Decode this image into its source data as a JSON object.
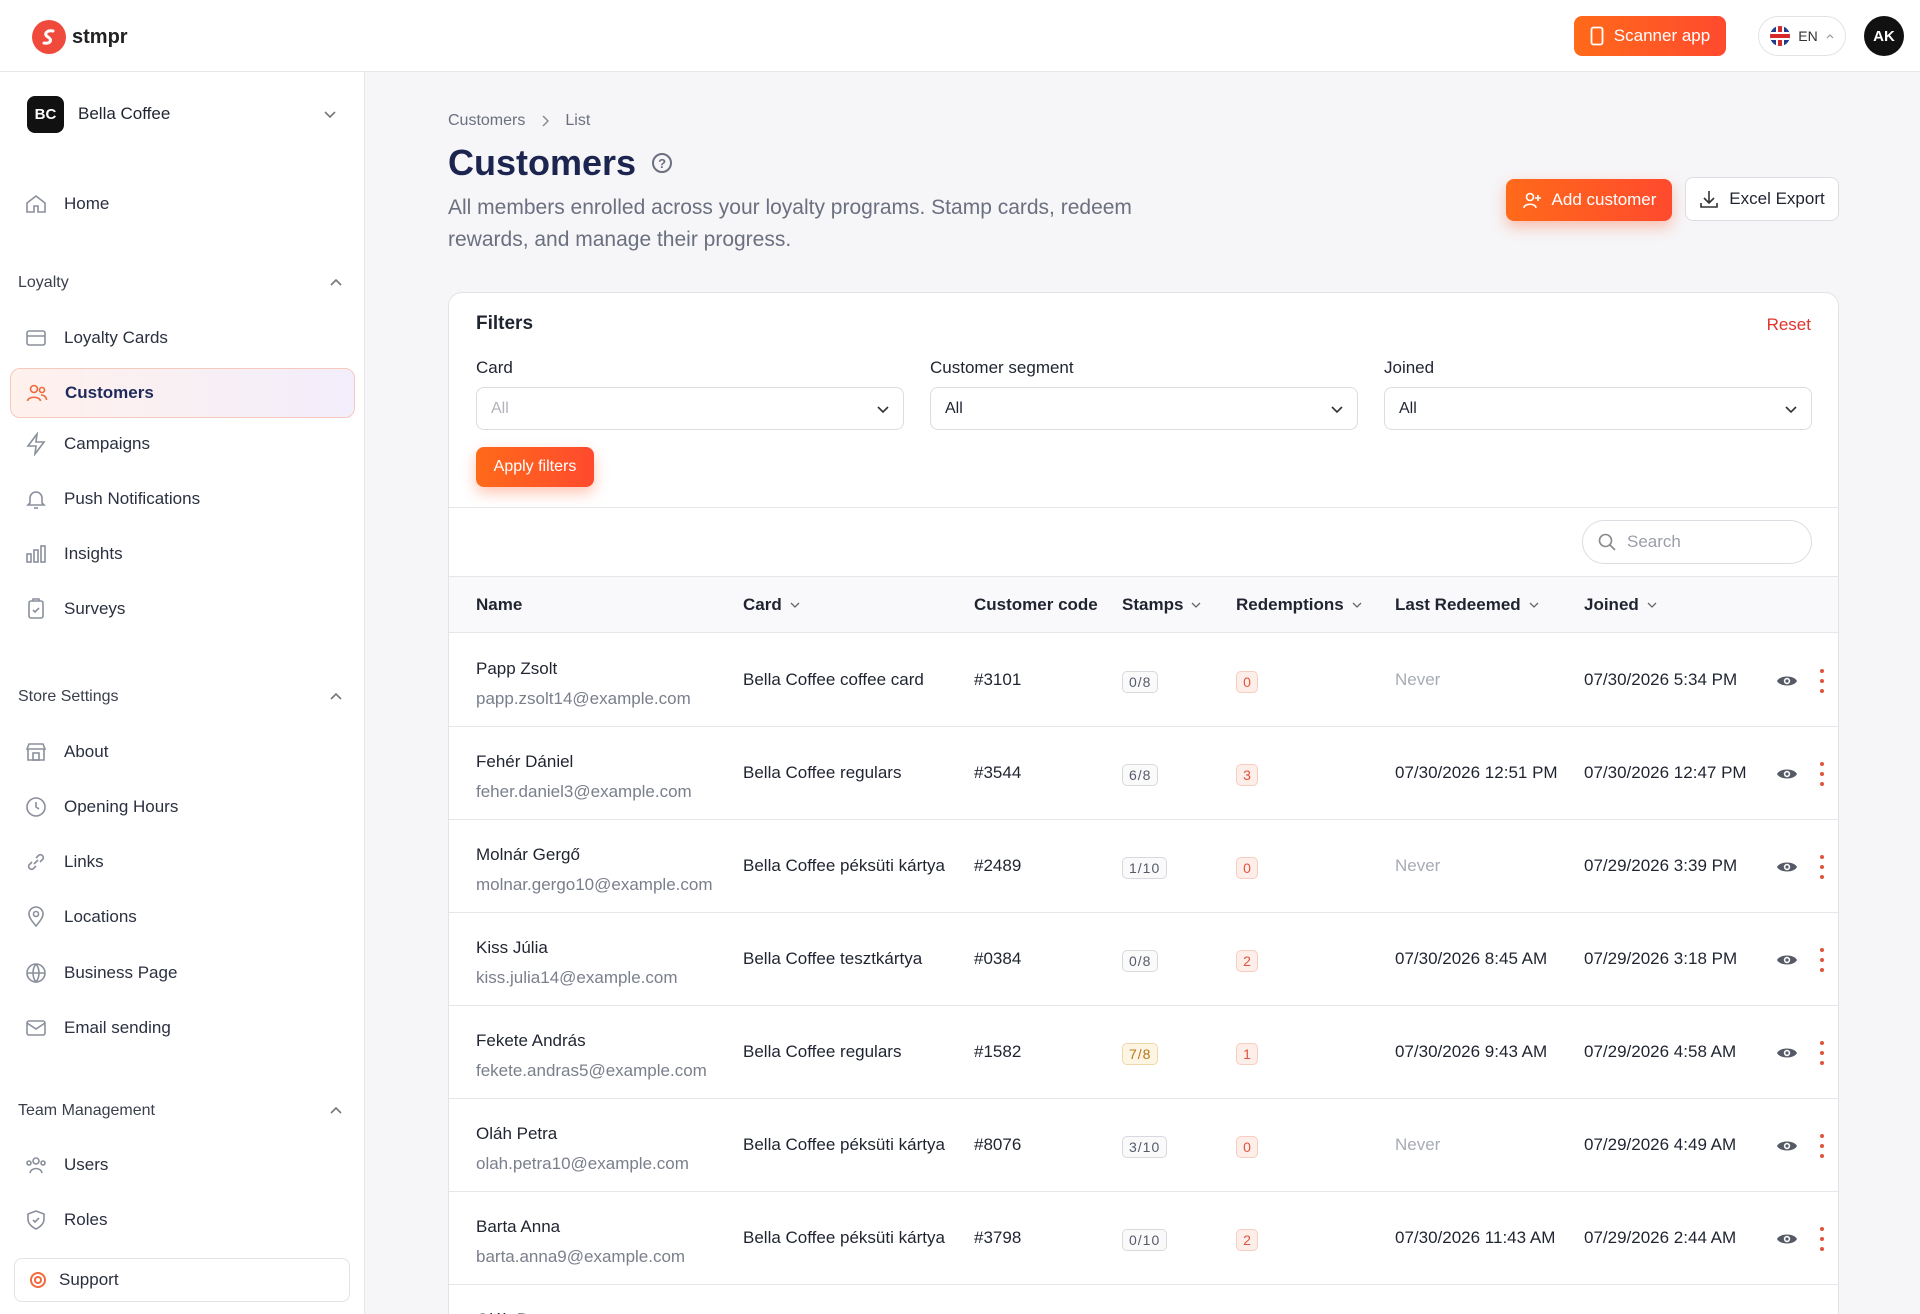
{
  "app": {
    "brand": "stmpr"
  },
  "topbar": {
    "scanner_label": "Scanner app",
    "lang": "EN",
    "avatar": "AK"
  },
  "org": {
    "badge": "BC",
    "name": "Bella Coffee"
  },
  "nav": {
    "home": "Home",
    "loyalty_section": "Loyalty",
    "loyalty_cards": "Loyalty Cards",
    "customers": "Customers",
    "campaigns": "Campaigns",
    "push": "Push Notifications",
    "insights": "Insights",
    "surveys": "Surveys",
    "store_section": "Store Settings",
    "about": "About",
    "hours": "Opening Hours",
    "links": "Links",
    "locations": "Locations",
    "business": "Business Page",
    "email": "Email sending",
    "team_section": "Team Management",
    "users": "Users",
    "roles": "Roles",
    "support": "Support"
  },
  "page": {
    "crumb_1": "Customers",
    "crumb_2": "List",
    "title": "Customers",
    "description": "All members enrolled across your loyalty programs. Stamp cards, redeem rewards, and manage their progress.",
    "add_label": "Add customer",
    "export_label": "Excel Export"
  },
  "filters": {
    "title": "Filters",
    "reset": "Reset",
    "card_label": "Card",
    "card_value": "All",
    "segment_label": "Customer segment",
    "segment_value": "All",
    "joined_label": "Joined",
    "joined_value": "All",
    "apply": "Apply filters"
  },
  "search": {
    "placeholder": "Search"
  },
  "table": {
    "headers": {
      "name": "Name",
      "card": "Card",
      "code": "Customer code",
      "stamps": "Stamps",
      "redemptions": "Redemptions",
      "last": "Last Redeemed",
      "joined": "Joined"
    },
    "rows": [
      {
        "name": "Papp Zsolt",
        "email": "papp.zsolt14@example.com",
        "card": "Bella Coffee coffee card",
        "code": "#3101",
        "stamps": "0/8",
        "redemptions": "0",
        "last": "Never",
        "joined": "07/30/2026 5:34 PM"
      },
      {
        "name": "Fehér Dániel",
        "email": "feher.daniel3@example.com",
        "card": "Bella Coffee regulars",
        "code": "#3544",
        "stamps": "6/8",
        "redemptions": "3",
        "last": "07/30/2026 12:51 PM",
        "joined": "07/30/2026 12:47 PM"
      },
      {
        "name": "Molnár Gergő",
        "email": "molnar.gergo10@example.com",
        "card": "Bella Coffee péksüti kártya",
        "code": "#2489",
        "stamps": "1/10",
        "redemptions": "0",
        "last": "Never",
        "joined": "07/29/2026 3:39 PM"
      },
      {
        "name": "Kiss Júlia",
        "email": "kiss.julia14@example.com",
        "card": "Bella Coffee tesztkártya",
        "code": "#0384",
        "stamps": "0/8",
        "redemptions": "2",
        "last": "07/30/2026 8:45 AM",
        "joined": "07/29/2026 3:18 PM"
      },
      {
        "name": "Fekete András",
        "email": "fekete.andras5@example.com",
        "card": "Bella Coffee regulars",
        "code": "#1582",
        "stamps": "7/8",
        "redemptions": "1",
        "last": "07/30/2026 9:43 AM",
        "joined": "07/29/2026 4:58 AM"
      },
      {
        "name": "Oláh Petra",
        "email": "olah.petra10@example.com",
        "card": "Bella Coffee péksüti kártya",
        "code": "#8076",
        "stamps": "3/10",
        "redemptions": "0",
        "last": "Never",
        "joined": "07/29/2026 4:49 AM"
      },
      {
        "name": "Barta Anna",
        "email": "barta.anna9@example.com",
        "card": "Bella Coffee péksüti kártya",
        "code": "#3798",
        "stamps": "0/10",
        "redemptions": "2",
        "last": "07/30/2026 11:43 AM",
        "joined": "07/29/2026 2:44 AM"
      },
      {
        "name": "Oláh Petra",
        "email": "",
        "card": "",
        "code": "",
        "stamps": "",
        "redemptions": "",
        "last": "",
        "joined": ""
      }
    ]
  },
  "colors": {
    "accent": "#ff5a2a",
    "primary_text": "#1c2550"
  }
}
